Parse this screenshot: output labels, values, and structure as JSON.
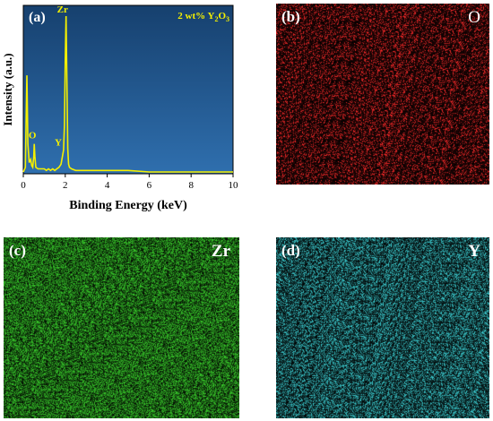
{
  "chart_data": [
    {
      "type": "line",
      "panel_label": "(a)",
      "annotation": "2 wt% Y",
      "annotation_sub": "2",
      "annotation_end": "O",
      "annotation_sub_end": "3",
      "xlabel": "Binding Energy (keV)",
      "ylabel": "Intensity (a.u.)",
      "xlim": [
        0,
        10
      ],
      "ylim": [
        0,
        100
      ],
      "xticks": [
        "0",
        "2",
        "4",
        "6",
        "8",
        "10"
      ],
      "grid": false,
      "background": "#1e5a9a",
      "line_color": "#f5f000",
      "peak_labels": [
        {
          "text": "Zr",
          "x": 2.04,
          "y": 100
        },
        {
          "text": "O",
          "x": 0.52,
          "y": 18
        },
        {
          "text": "Y",
          "x": 1.92,
          "y": 14
        }
      ],
      "x": [
        0.0,
        0.1,
        0.17,
        0.22,
        0.28,
        0.35,
        0.4,
        0.45,
        0.5,
        0.52,
        0.55,
        0.6,
        0.7,
        0.8,
        0.9,
        1.0,
        1.1,
        1.2,
        1.3,
        1.4,
        1.5,
        1.6,
        1.7,
        1.8,
        1.92,
        1.96,
        2.0,
        2.04,
        2.08,
        2.12,
        2.16,
        2.2,
        2.3,
        2.5,
        3.0,
        3.5,
        4.0,
        4.5,
        5.0,
        6.0,
        7.0,
        8.0,
        9.0,
        10.0
      ],
      "y": [
        0,
        3,
        62,
        18,
        6,
        8,
        4,
        3,
        10,
        18,
        10,
        3,
        2,
        2,
        2,
        2,
        1,
        2,
        1,
        2,
        1,
        2,
        3,
        5,
        14,
        30,
        72,
        100,
        55,
        15,
        5,
        3,
        2,
        1,
        1,
        1,
        1,
        1,
        1,
        0,
        0,
        0,
        0,
        0
      ]
    },
    {
      "type": "heatmap",
      "panel_label": "(b)",
      "element": "O",
      "color": "#ff2a2a"
    },
    {
      "type": "heatmap",
      "panel_label": "(c)",
      "element": "Zr",
      "color": "#3ad12c"
    },
    {
      "type": "heatmap",
      "panel_label": "(d)",
      "element": "Y",
      "color": "#3ed6da"
    }
  ]
}
